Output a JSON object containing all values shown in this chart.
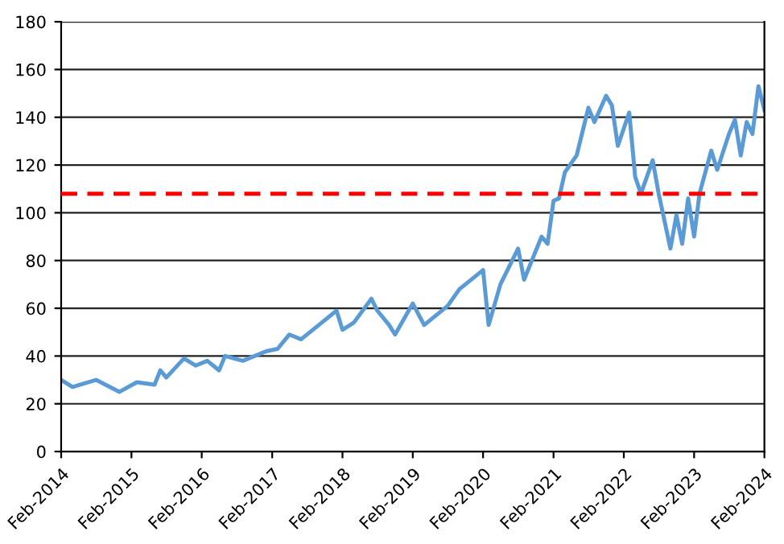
{
  "chart_data": {
    "type": "line",
    "xlim": [
      "2014-02",
      "2024-02"
    ],
    "ylim": [
      0,
      180
    ],
    "yticks": [
      0,
      20,
      40,
      60,
      80,
      100,
      120,
      140,
      160,
      180
    ],
    "xticks": [
      {
        "value": "2014-02",
        "label": "Feb-2014"
      },
      {
        "value": "2015-02",
        "label": "Feb-2015"
      },
      {
        "value": "2016-02",
        "label": "Feb-2016"
      },
      {
        "value": "2017-02",
        "label": "Feb-2017"
      },
      {
        "value": "2018-02",
        "label": "Feb-2018"
      },
      {
        "value": "2019-02",
        "label": "Feb-2019"
      },
      {
        "value": "2020-02",
        "label": "Feb-2020"
      },
      {
        "value": "2021-02",
        "label": "Feb-2021"
      },
      {
        "value": "2022-02",
        "label": "Feb-2022"
      },
      {
        "value": "2023-02",
        "label": "Feb-2023"
      },
      {
        "value": "2024-02",
        "label": "Feb-2024"
      }
    ],
    "grid": "y",
    "legend": false,
    "marker": "none",
    "line_style": "solid",
    "x": [
      "2014-02",
      "2014-04",
      "2014-08",
      "2014-12",
      "2015-03",
      "2015-06",
      "2015-07",
      "2015-08",
      "2015-11",
      "2016-01",
      "2016-03",
      "2016-05",
      "2016-06",
      "2016-09",
      "2017-01",
      "2017-03",
      "2017-05",
      "2017-07",
      "2017-10",
      "2018-01",
      "2018-02",
      "2018-04",
      "2018-07",
      "2018-08",
      "2018-10",
      "2018-11",
      "2019-02",
      "2019-04",
      "2019-08",
      "2019-10",
      "2020-02",
      "2020-03",
      "2020-05",
      "2020-08",
      "2020-09",
      "2020-12",
      "2021-01",
      "2021-02",
      "2021-03",
      "2021-04",
      "2021-06",
      "2021-08",
      "2021-09",
      "2021-11",
      "2021-12",
      "2022-01",
      "2022-03",
      "2022-04",
      "2022-05",
      "2022-07",
      "2022-08",
      "2022-10",
      "2022-11",
      "2022-12",
      "2023-01",
      "2023-02",
      "2023-03",
      "2023-05",
      "2023-06",
      "2023-08",
      "2023-09",
      "2023-10",
      "2023-11",
      "2023-12",
      "2024-01",
      "2024-02"
    ],
    "series": [
      {
        "color": "#5b9bd5",
        "values": [
          30,
          27,
          30,
          25,
          29,
          28,
          34,
          31,
          39,
          36,
          38,
          34,
          40,
          38,
          42,
          43,
          49,
          47,
          53,
          59,
          51,
          54,
          64,
          59,
          53,
          49,
          62,
          53,
          61,
          68,
          76,
          53,
          70,
          85,
          72,
          90,
          87,
          105,
          106,
          117,
          124,
          144,
          138,
          149,
          145,
          128,
          142,
          115,
          108,
          122,
          108,
          85,
          99,
          87,
          106,
          90,
          108,
          126,
          118,
          133,
          139,
          124,
          138,
          133,
          153,
          143
        ]
      }
    ],
    "ref_lines": [
      {
        "axis": "y",
        "value": 108,
        "color": "#ff0000",
        "line_style": "dashed"
      }
    ]
  }
}
